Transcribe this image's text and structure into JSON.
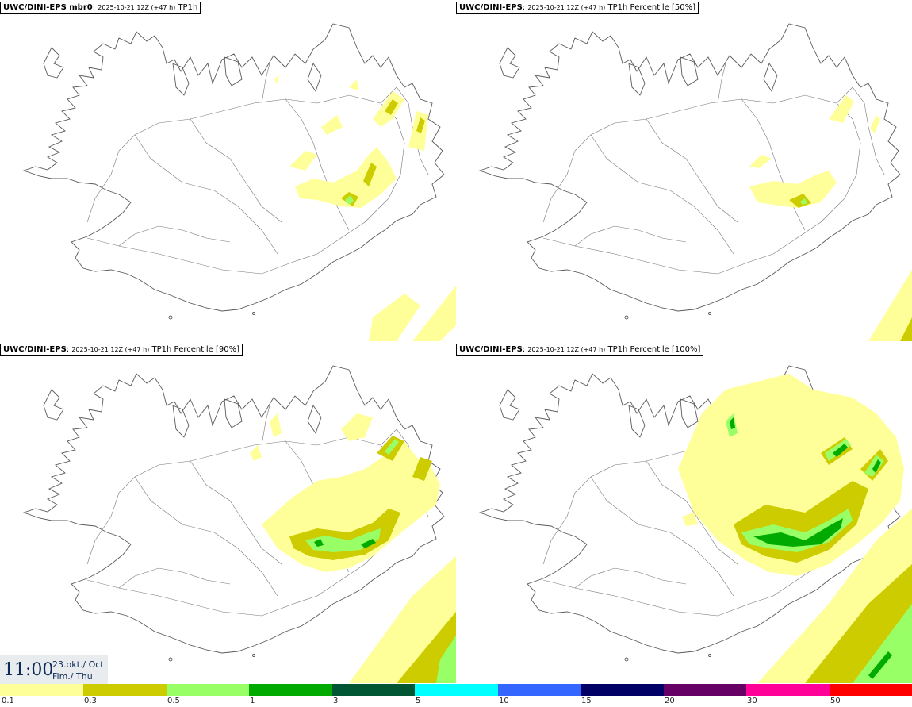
{
  "panels": [
    {
      "model": "UWC/DINI-EPS mbr0",
      "run": "2025-10-21 12Z (+47 h)",
      "product": "TP1h"
    },
    {
      "model": "UWC/DINI-EPS",
      "run": "2025-10-21 12Z (+47 h)",
      "product": "TP1h Percentile [50%]"
    },
    {
      "model": "UWC/DINI-EPS",
      "run": "2025-10-21 12Z (+47 h)",
      "product": "TP1h Percentile [90%]"
    },
    {
      "model": "UWC/DINI-EPS",
      "run": "2025-10-21 12Z (+47 h)",
      "product": "TP1h Percentile [100%]"
    }
  ],
  "valid_time": {
    "time": "11:00",
    "date": "23.okt./ Oct",
    "weekday": "Fim./ Thu"
  },
  "legend": {
    "colors": [
      "#ffff99",
      "#cccc00",
      "#99ff66",
      "#00aa00",
      "#005533",
      "#00ffff",
      "#3366ff",
      "#000066",
      "#660066",
      "#ff0099",
      "#ff0000"
    ],
    "labels": [
      "0.1",
      "0.3",
      "0.5",
      "1",
      "3",
      "5",
      "10",
      "15",
      "20",
      "30",
      "50"
    ]
  }
}
